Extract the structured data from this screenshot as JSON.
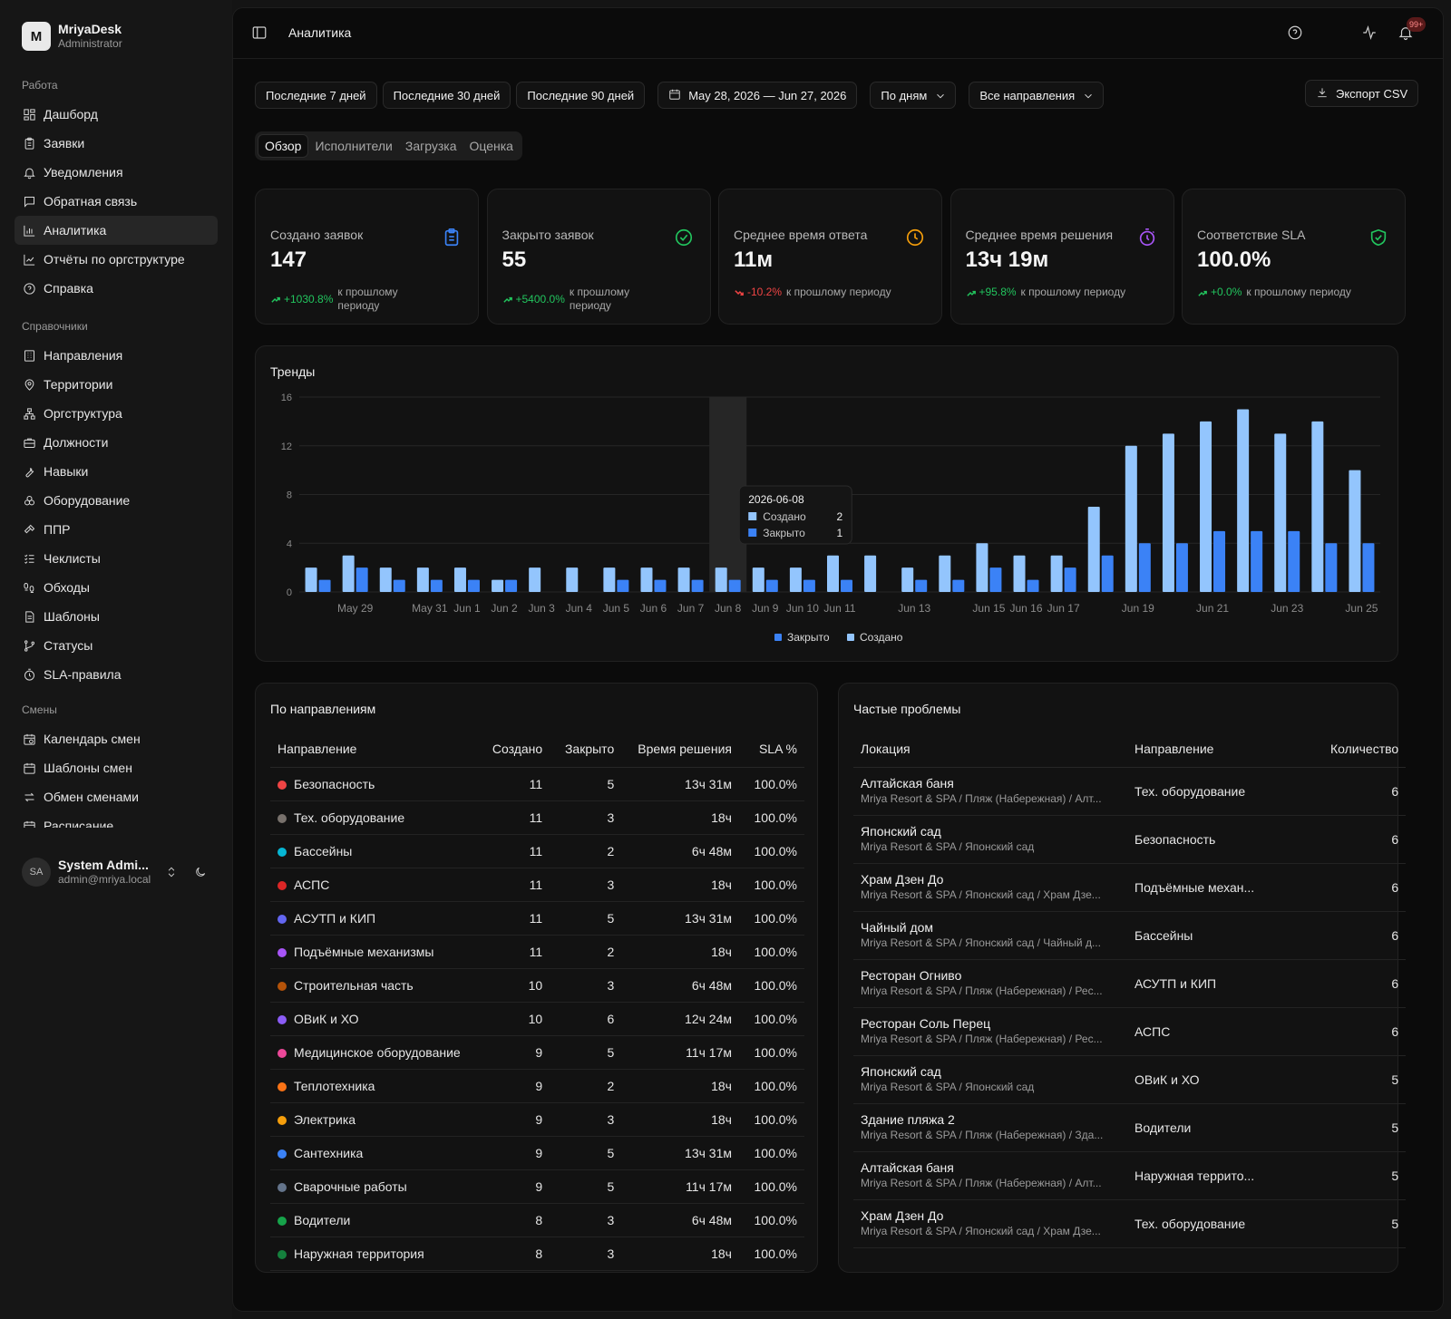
{
  "brand": {
    "logo_letter": "M",
    "name": "MriyaDesk",
    "role": "Administrator"
  },
  "sidebar": {
    "sections": [
      {
        "label": "Работа",
        "items": [
          {
            "label": "Дашборд",
            "icon": "dashboard-icon"
          },
          {
            "label": "Заявки",
            "icon": "clipboard-icon"
          },
          {
            "label": "Уведомления",
            "icon": "bell-icon"
          },
          {
            "label": "Обратная связь",
            "icon": "message-icon"
          },
          {
            "label": "Аналитика",
            "icon": "bar-chart-icon",
            "active": true
          },
          {
            "label": "Отчёты по оргструктуре",
            "icon": "line-chart-icon"
          },
          {
            "label": "Справка",
            "icon": "help-icon"
          }
        ]
      },
      {
        "label": "Справочники",
        "items": [
          {
            "label": "Направления",
            "icon": "building-icon"
          },
          {
            "label": "Территории",
            "icon": "map-pin-icon"
          },
          {
            "label": "Оргструктура",
            "icon": "network-icon"
          },
          {
            "label": "Должности",
            "icon": "briefcase-icon"
          },
          {
            "label": "Навыки",
            "icon": "wrench-icon"
          },
          {
            "label": "Оборудование",
            "icon": "boxes-icon"
          },
          {
            "label": "ППР",
            "icon": "hammer-icon"
          },
          {
            "label": "Чеклисты",
            "icon": "checklist-icon"
          },
          {
            "label": "Обходы",
            "icon": "footprints-icon"
          },
          {
            "label": "Шаблоны",
            "icon": "document-icon"
          },
          {
            "label": "Статусы",
            "icon": "git-branch-icon"
          },
          {
            "label": "SLA-правила",
            "icon": "timer-icon"
          }
        ]
      },
      {
        "label": "Смены",
        "items": [
          {
            "label": "Календарь смен",
            "icon": "calendar-clock-icon"
          },
          {
            "label": "Шаблоны смен",
            "icon": "calendar-icon"
          },
          {
            "label": "Обмен сменами",
            "icon": "swap-icon"
          },
          {
            "label": "Расписание",
            "icon": "calendar-icon"
          }
        ]
      }
    ]
  },
  "user": {
    "initials": "SA",
    "name": "System Admi...",
    "email": "admin@mriya.local"
  },
  "header": {
    "title": "Аналитика",
    "notifications_badge": "99+"
  },
  "filters": {
    "presets": [
      "Последние 7 дней",
      "Последние 30 дней",
      "Последние 90 дней"
    ],
    "date_range": "May 28, 2026 — Jun 27, 2026",
    "granularity": "По дням",
    "direction": "Все направления",
    "export_label": "Экспорт CSV"
  },
  "tabs": [
    {
      "label": "Обзор",
      "active": true
    },
    {
      "label": "Исполнители"
    },
    {
      "label": "Загрузка"
    },
    {
      "label": "Оценка"
    }
  ],
  "kpis": [
    {
      "label": "Создано заявок",
      "value": "147",
      "delta": "+1030.8%",
      "trend": "up",
      "compare": "к прошлому периоду",
      "icon": "clipboard-icon",
      "icon_color": "#3b82f6"
    },
    {
      "label": "Закрыто заявок",
      "value": "55",
      "delta": "+5400.0%",
      "trend": "up",
      "compare": "к прошлому периоду",
      "icon": "check-circle-icon",
      "icon_color": "#22c55e"
    },
    {
      "label": "Среднее время ответа",
      "value": "11м",
      "delta": "-10.2%",
      "trend": "down",
      "compare": "к прошлому периоду",
      "icon": "clock-icon",
      "icon_color": "#f59e0b"
    },
    {
      "label": "Среднее время решения",
      "value": "13ч 19м",
      "delta": "+95.8%",
      "trend": "up",
      "compare": "к прошлому периоду",
      "icon": "stopwatch-icon",
      "icon_color": "#a855f7"
    },
    {
      "label": "Соответствие SLA",
      "value": "100.0%",
      "delta": "+0.0%",
      "trend": "up",
      "compare": "к прошлому периоду",
      "icon": "shield-check-icon",
      "icon_color": "#22c55e"
    }
  ],
  "trends": {
    "title": "Тренды",
    "chart_data": {
      "type": "bar",
      "x": [
        "2026-05-28",
        "2026-05-29",
        "2026-05-30",
        "2026-05-31",
        "2026-06-01",
        "2026-06-02",
        "2026-06-03",
        "2026-06-04",
        "2026-06-05",
        "2026-06-06",
        "2026-06-07",
        "2026-06-08",
        "2026-06-09",
        "2026-06-10",
        "2026-06-11",
        "2026-06-12",
        "2026-06-13",
        "2026-06-14",
        "2026-06-15",
        "2026-06-16",
        "2026-06-17",
        "2026-06-18",
        "2026-06-19",
        "2026-06-20",
        "2026-06-21",
        "2026-06-22",
        "2026-06-23",
        "2026-06-24",
        "2026-06-25"
      ],
      "tick_labels": [
        "May 29",
        "May 31",
        "Jun 1",
        "Jun 2",
        "Jun 3",
        "Jun 4",
        "Jun 5",
        "Jun 6",
        "Jun 7",
        "Jun 8",
        "Jun 9",
        "Jun 10",
        "Jun 11",
        "Jun 13",
        "Jun 15",
        "Jun 16",
        "Jun 17",
        "Jun 19",
        "Jun 21",
        "Jun 23",
        "Jun 25"
      ],
      "tick_dates": [
        "2026-05-29",
        "2026-05-31",
        "2026-06-01",
        "2026-06-02",
        "2026-06-03",
        "2026-06-04",
        "2026-06-05",
        "2026-06-06",
        "2026-06-07",
        "2026-06-08",
        "2026-06-09",
        "2026-06-10",
        "2026-06-11",
        "2026-06-13",
        "2026-06-15",
        "2026-06-16",
        "2026-06-17",
        "2026-06-19",
        "2026-06-21",
        "2026-06-23",
        "2026-06-25"
      ],
      "series": [
        {
          "name": "Создано",
          "color": "#93c5fd",
          "values": [
            2,
            3,
            2,
            2,
            2,
            1,
            2,
            2,
            2,
            2,
            2,
            2,
            2,
            2,
            3,
            3,
            2,
            3,
            4,
            3,
            3,
            7,
            12,
            13,
            14,
            15,
            13,
            14,
            10
          ]
        },
        {
          "name": "Закрыто",
          "color": "#3b82f6",
          "values": [
            1,
            2,
            1,
            1,
            1,
            1,
            0,
            0,
            1,
            1,
            1,
            1,
            1,
            1,
            1,
            0,
            1,
            1,
            2,
            1,
            2,
            3,
            4,
            4,
            5,
            5,
            5,
            4,
            4
          ]
        }
      ],
      "ylim": [
        0,
        16
      ],
      "yticks": [
        0,
        4,
        8,
        12,
        16
      ],
      "grid": true,
      "legend": "bottom-center",
      "legend_order": [
        "Закрыто",
        "Создано"
      ],
      "highlight": "2026-06-08",
      "tooltip": {
        "date": "2026-06-08",
        "rows": [
          {
            "name": "Создано",
            "value": "2"
          },
          {
            "name": "Закрыто",
            "value": "1"
          }
        ]
      }
    }
  },
  "by_direction": {
    "title": "По направлениям",
    "columns": [
      "Направление",
      "Создано",
      "Закрыто",
      "Время решения",
      "SLA %"
    ],
    "rows": [
      {
        "name": "Безопасность",
        "color": "#ef4444",
        "created": "11",
        "closed": "5",
        "time": "13ч 31м",
        "sla": "100.0%"
      },
      {
        "name": "Тех. оборудование",
        "color": "#78716c",
        "created": "11",
        "closed": "3",
        "time": "18ч",
        "sla": "100.0%"
      },
      {
        "name": "Бассейны",
        "color": "#06b6d4",
        "created": "11",
        "closed": "2",
        "time": "6ч 48м",
        "sla": "100.0%"
      },
      {
        "name": "АСПС",
        "color": "#dc2626",
        "created": "11",
        "closed": "3",
        "time": "18ч",
        "sla": "100.0%"
      },
      {
        "name": "АСУТП и КИП",
        "color": "#6366f1",
        "created": "11",
        "closed": "5",
        "time": "13ч 31м",
        "sla": "100.0%"
      },
      {
        "name": "Подъёмные механизмы",
        "color": "#a855f7",
        "created": "11",
        "closed": "2",
        "time": "18ч",
        "sla": "100.0%"
      },
      {
        "name": "Строительная часть",
        "color": "#b45309",
        "created": "10",
        "closed": "3",
        "time": "6ч 48м",
        "sla": "100.0%"
      },
      {
        "name": "ОВиК и ХО",
        "color": "#8b5cf6",
        "created": "10",
        "closed": "6",
        "time": "12ч 24м",
        "sla": "100.0%"
      },
      {
        "name": "Медицинское оборудование",
        "color": "#ec4899",
        "created": "9",
        "closed": "5",
        "time": "11ч 17м",
        "sla": "100.0%"
      },
      {
        "name": "Теплотехника",
        "color": "#f97316",
        "created": "9",
        "closed": "2",
        "time": "18ч",
        "sla": "100.0%"
      },
      {
        "name": "Электрика",
        "color": "#f59e0b",
        "created": "9",
        "closed": "3",
        "time": "18ч",
        "sla": "100.0%"
      },
      {
        "name": "Сантехника",
        "color": "#3b82f6",
        "created": "9",
        "closed": "5",
        "time": "13ч 31м",
        "sla": "100.0%"
      },
      {
        "name": "Сварочные работы",
        "color": "#64748b",
        "created": "9",
        "closed": "5",
        "time": "11ч 17м",
        "sla": "100.0%"
      },
      {
        "name": "Водители",
        "color": "#16a34a",
        "created": "8",
        "closed": "3",
        "time": "6ч 48м",
        "sla": "100.0%"
      },
      {
        "name": "Наружная территория",
        "color": "#15803d",
        "created": "8",
        "closed": "3",
        "time": "18ч",
        "sla": "100.0%"
      }
    ]
  },
  "frequent": {
    "title": "Частые проблемы",
    "columns": [
      "Локация",
      "Направление",
      "Количество"
    ],
    "rows": [
      {
        "location": "Алтайская баня",
        "path": "Mriya Resort & SPA / Пляж (Набережная) / Алт...",
        "direction": "Тех. оборудование",
        "count": "6"
      },
      {
        "location": "Японский сад",
        "path": "Mriya Resort & SPA / Японский сад",
        "direction": "Безопасность",
        "count": "6"
      },
      {
        "location": "Храм Дзен До",
        "path": "Mriya Resort & SPA / Японский сад / Храм Дзе...",
        "direction": "Подъёмные механ...",
        "count": "6"
      },
      {
        "location": "Чайный дом",
        "path": "Mriya Resort & SPA / Японский сад / Чайный д...",
        "direction": "Бассейны",
        "count": "6"
      },
      {
        "location": "Ресторан Огниво",
        "path": "Mriya Resort & SPA / Пляж (Набережная) / Рес...",
        "direction": "АСУТП и КИП",
        "count": "6"
      },
      {
        "location": "Ресторан Соль Перец",
        "path": "Mriya Resort & SPA / Пляж (Набережная) / Рес...",
        "direction": "АСПС",
        "count": "6"
      },
      {
        "location": "Японский сад",
        "path": "Mriya Resort & SPA / Японский сад",
        "direction": "ОВиК и ХО",
        "count": "5"
      },
      {
        "location": "Здание пляжа 2",
        "path": "Mriya Resort & SPA / Пляж (Набережная) / Зда...",
        "direction": "Водители",
        "count": "5"
      },
      {
        "location": "Алтайская баня",
        "path": "Mriya Resort & SPA / Пляж (Набережная) / Алт...",
        "direction": "Наружная террито...",
        "count": "5"
      },
      {
        "location": "Храм Дзен До",
        "path": "Mriya Resort & SPA / Японский сад / Храм Дзе...",
        "direction": "Тех. оборудование",
        "count": "5"
      }
    ]
  }
}
